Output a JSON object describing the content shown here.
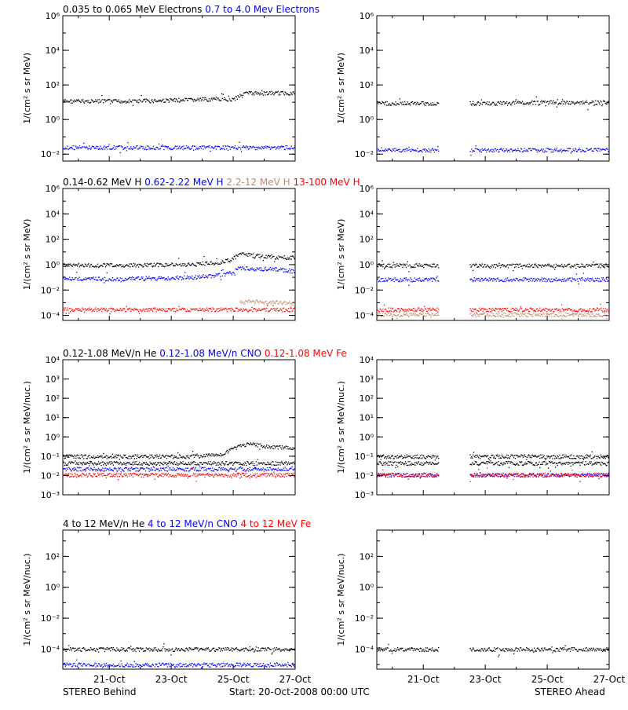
{
  "footer": {
    "left": "STEREO Behind",
    "center": "Start: 20-Oct-2008 00:00 UTC",
    "right": "STEREO Ahead"
  },
  "colors": {
    "black": "#000000",
    "blue": "#0000ff",
    "tan": "#c08870",
    "red": "#ff0000"
  },
  "x_ticks": [
    "21-Oct",
    "23-Oct",
    "25-Oct",
    "27-Oct"
  ],
  "chart_data": [
    {
      "type": "scatter",
      "legend": [
        {
          "text": "0.035 to 0.065 MeV Electrons",
          "color": "#000000"
        },
        {
          "text": "0.7 to 4.0 Mev Electrons",
          "color": "#0000ff"
        }
      ],
      "ylabel": "1/(cm² s sr MeV)",
      "ylim": [
        0.004,
        1000000
      ],
      "yticks": [
        {
          "v": 0.01,
          "label": "10⁻²"
        },
        {
          "v": 1,
          "label": "10⁰"
        },
        {
          "v": 100,
          "label": "10²"
        },
        {
          "v": 10000,
          "label": "10⁴"
        },
        {
          "v": 1000000,
          "label": "10⁶"
        }
      ],
      "panels": [
        {
          "spacecraft": "STEREO Behind",
          "series": [
            {
              "name": "0.035 to 0.065 MeV Electrons",
              "color": "#000000",
              "x": [
                0,
                1,
                2,
                3,
                4,
                5,
                5.5,
                5.8,
                6,
                7,
                7.5
              ],
              "y": [
                12,
                12,
                12,
                13,
                14,
                16,
                15,
                35,
                35,
                35,
                36
              ]
            },
            {
              "name": "0.7 to 4.0 Mev Electrons",
              "color": "#0000ff",
              "x": [
                0,
                1,
                2,
                3,
                4,
                5,
                6,
                7,
                7.5
              ],
              "y": [
                0.025,
                0.025,
                0.025,
                0.025,
                0.025,
                0.025,
                0.025,
                0.025,
                0.025
              ]
            }
          ]
        },
        {
          "spacecraft": "STEREO Ahead",
          "series": [
            {
              "name": "0.035 to 0.065 MeV Electrons",
              "color": "#000000",
              "x": [
                0,
                1,
                2
              ],
              "y": [
                9,
                9,
                9
              ]
            },
            {
              "name": "0.035 to 0.065 MeV Electrons",
              "color": "#000000",
              "x": [
                3,
                4,
                5,
                6,
                7,
                7.5
              ],
              "y": [
                9,
                9,
                10,
                10,
                10,
                10
              ]
            },
            {
              "name": "0.7 to 4.0 Mev Electrons",
              "color": "#0000ff",
              "x": [
                0,
                1,
                2
              ],
              "y": [
                0.018,
                0.018,
                0.018
              ]
            },
            {
              "name": "0.7 to 4.0 Mev Electrons",
              "color": "#0000ff",
              "x": [
                3,
                4,
                5,
                6,
                7,
                7.5
              ],
              "y": [
                0.018,
                0.018,
                0.018,
                0.018,
                0.018,
                0.018
              ]
            }
          ]
        }
      ]
    },
    {
      "type": "scatter",
      "legend": [
        {
          "text": "0.14-0.62 MeV H",
          "color": "#000000"
        },
        {
          "text": "0.62-2.22 MeV H",
          "color": "#0000ff"
        },
        {
          "text": "2.2-12 MeV H",
          "color": "#c08870"
        },
        {
          "text": "13-100 MeV H",
          "color": "#ff0000"
        }
      ],
      "ylabel": "1/(cm² s sr MeV)",
      "ylim": [
        4e-05,
        1000000
      ],
      "yticks": [
        {
          "v": 0.0001,
          "label": "10⁻⁴"
        },
        {
          "v": 0.01,
          "label": "10⁻²"
        },
        {
          "v": 1,
          "label": "10⁰"
        },
        {
          "v": 100,
          "label": "10²"
        },
        {
          "v": 10000,
          "label": "10⁴"
        },
        {
          "v": 1000000,
          "label": "10⁶"
        }
      ],
      "panels": [
        {
          "spacecraft": "STEREO Behind",
          "series": [
            {
              "name": "0.14-0.62 MeV H",
              "color": "#000000",
              "x": [
                0,
                1,
                2,
                3,
                4,
                5,
                5.4,
                5.7,
                6,
                6.5,
                7,
                7.5
              ],
              "y": [
                1,
                0.95,
                0.95,
                1,
                1.1,
                1.5,
                2.5,
                7,
                6,
                5,
                4,
                4
              ]
            },
            {
              "name": "0.62-2.22 MeV H",
              "color": "#0000ff",
              "x": [
                0,
                1,
                2,
                3,
                4,
                5,
                5.4,
                5.7,
                6,
                7,
                7.5
              ],
              "y": [
                0.08,
                0.08,
                0.08,
                0.09,
                0.1,
                0.15,
                0.2,
                0.6,
                0.5,
                0.45,
                0.3
              ]
            },
            {
              "name": "2.2-12 MeV H",
              "color": "#c08870",
              "x": [
                5.7,
                6,
                6.5,
                7,
                7.5
              ],
              "y": [
                0.0012,
                0.0013,
                0.0012,
                0.0011,
                0.001
              ]
            },
            {
              "name": "13-100 MeV H",
              "color": "#ff0000",
              "x": [
                0,
                1,
                2,
                3,
                4,
                5,
                6,
                7,
                7.5
              ],
              "y": [
                0.0003,
                0.0003,
                0.0003,
                0.0003,
                0.0003,
                0.0003,
                0.0003,
                0.0003,
                0.0003
              ]
            }
          ]
        },
        {
          "spacecraft": "STEREO Ahead",
          "series": [
            {
              "name": "0.14-0.62 MeV H",
              "color": "#000000",
              "x": [
                0,
                1,
                2
              ],
              "y": [
                0.9,
                0.9,
                0.9
              ]
            },
            {
              "name": "0.14-0.62 MeV H",
              "color": "#000000",
              "x": [
                3,
                4,
                5,
                6,
                7,
                7.5
              ],
              "y": [
                0.9,
                0.9,
                0.9,
                0.9,
                0.9,
                0.9
              ]
            },
            {
              "name": "0.62-2.22 MeV H",
              "color": "#0000ff",
              "x": [
                0,
                1,
                2
              ],
              "y": [
                0.07,
                0.07,
                0.07
              ]
            },
            {
              "name": "0.62-2.22 MeV H",
              "color": "#0000ff",
              "x": [
                3,
                4,
                5,
                6,
                7,
                7.5
              ],
              "y": [
                0.07,
                0.07,
                0.07,
                0.07,
                0.07,
                0.07
              ]
            },
            {
              "name": "2.2-12 MeV H",
              "color": "#c08870",
              "x": [
                0,
                1,
                2
              ],
              "y": [
                0.00012,
                0.00012,
                0.00012
              ]
            },
            {
              "name": "2.2-12 MeV H",
              "color": "#c08870",
              "x": [
                3,
                4,
                5,
                6,
                7,
                7.5
              ],
              "y": [
                0.00012,
                0.00012,
                0.00012,
                0.00012,
                0.00012,
                0.00012
              ]
            },
            {
              "name": "13-100 MeV H",
              "color": "#ff0000",
              "x": [
                0,
                1,
                2
              ],
              "y": [
                0.0003,
                0.0003,
                0.0003
              ]
            },
            {
              "name": "13-100 MeV H",
              "color": "#ff0000",
              "x": [
                3,
                4,
                5,
                6,
                7,
                7.5
              ],
              "y": [
                0.0003,
                0.0003,
                0.0003,
                0.0003,
                0.0003,
                0.0003
              ]
            }
          ]
        }
      ]
    },
    {
      "type": "scatter",
      "legend": [
        {
          "text": "0.12-1.08 MeV/n He",
          "color": "#000000"
        },
        {
          "text": "0.12-1.08 MeV/n CNO",
          "color": "#0000ff"
        },
        {
          "text": "0.12-1.08 MeV Fe",
          "color": "#ff0000"
        }
      ],
      "ylabel": "1/(cm² s sr MeV/nuc.)",
      "ylim": [
        0.001,
        10000
      ],
      "yticks": [
        {
          "v": 0.001,
          "label": "10⁻³"
        },
        {
          "v": 0.01,
          "label": "10⁻²"
        },
        {
          "v": 0.1,
          "label": "10⁻¹"
        },
        {
          "v": 1,
          "label": "10⁰"
        },
        {
          "v": 10,
          "label": "10¹"
        },
        {
          "v": 100,
          "label": "10²"
        },
        {
          "v": 1000,
          "label": "10³"
        },
        {
          "v": 10000,
          "label": "10⁴"
        }
      ],
      "panels": [
        {
          "spacecraft": "STEREO Behind",
          "series": [
            {
              "name": "0.12-1.08 MeV/n He",
              "color": "#000000",
              "x": [
                0,
                1,
                2,
                3,
                4,
                5,
                5.7,
                6,
                6.5,
                7,
                7.5
              ],
              "y": [
                0.1,
                0.1,
                0.1,
                0.1,
                0.1,
                0.12,
                0.35,
                0.45,
                0.35,
                0.3,
                0.25
              ]
            },
            {
              "name": "0.12-1.08 MeV/n He",
              "color": "#000000",
              "x": [
                0,
                1,
                2,
                3,
                4,
                5,
                6,
                7,
                7.5
              ],
              "y": [
                0.045,
                0.045,
                0.045,
                0.045,
                0.045,
                0.045,
                0.045,
                0.045,
                0.045
              ]
            },
            {
              "name": "0.12-1.08 MeV/n CNO",
              "color": "#0000ff",
              "x": [
                0,
                1,
                2,
                3,
                4,
                5,
                6,
                7,
                7.5
              ],
              "y": [
                0.022,
                0.022,
                0.022,
                0.022,
                0.022,
                0.022,
                0.022,
                0.022,
                0.022
              ]
            },
            {
              "name": "0.12-1.08 MeV Fe",
              "color": "#ff0000",
              "x": [
                0,
                1,
                2,
                3,
                4,
                5,
                6,
                7,
                7.5
              ],
              "y": [
                0.011,
                0.011,
                0.011,
                0.011,
                0.011,
                0.011,
                0.011,
                0.011,
                0.011
              ]
            }
          ]
        },
        {
          "spacecraft": "STEREO Ahead",
          "series": [
            {
              "name": "0.12-1.08 MeV/n He",
              "color": "#000000",
              "x": [
                0,
                1,
                2
              ],
              "y": [
                0.1,
                0.1,
                0.1
              ]
            },
            {
              "name": "0.12-1.08 MeV/n He",
              "color": "#000000",
              "x": [
                3,
                4,
                5,
                6,
                7,
                7.5
              ],
              "y": [
                0.1,
                0.1,
                0.1,
                0.1,
                0.1,
                0.1
              ]
            },
            {
              "name": "0.12-1.08 MeV/n He",
              "color": "#000000",
              "x": [
                0,
                1,
                2
              ],
              "y": [
                0.045,
                0.045,
                0.045
              ]
            },
            {
              "name": "0.12-1.08 MeV/n He",
              "color": "#000000",
              "x": [
                3,
                4,
                5,
                6,
                7,
                7.5
              ],
              "y": [
                0.045,
                0.045,
                0.045,
                0.045,
                0.045,
                0.045
              ]
            },
            {
              "name": "0.12-1.08 MeV/n CNO",
              "color": "#0000ff",
              "x": [
                0,
                1,
                2
              ],
              "y": [
                0.011,
                0.011,
                0.011
              ]
            },
            {
              "name": "0.12-1.08 MeV/n CNO",
              "color": "#0000ff",
              "x": [
                3,
                4,
                5,
                6,
                7,
                7.5
              ],
              "y": [
                0.011,
                0.011,
                0.011,
                0.011,
                0.011,
                0.011
              ]
            },
            {
              "name": "0.12-1.08 MeV Fe",
              "color": "#ff0000",
              "x": [
                0,
                1,
                2
              ],
              "y": [
                0.011,
                0.011,
                0.011
              ]
            },
            {
              "name": "0.12-1.08 MeV Fe",
              "color": "#ff0000",
              "x": [
                3,
                4,
                5,
                6,
                7,
                7.5
              ],
              "y": [
                0.011,
                0.011,
                0.011,
                0.011,
                0.011,
                0.011
              ]
            }
          ]
        }
      ]
    },
    {
      "type": "scatter",
      "legend": [
        {
          "text": "4 to 12 MeV/n He",
          "color": "#000000"
        },
        {
          "text": "4 to 12 MeV/n CNO",
          "color": "#0000ff"
        },
        {
          "text": "4 to 12 MeV Fe",
          "color": "#ff0000"
        }
      ],
      "ylabel": "1/(cm² s sr MeV/nuc.)",
      "ylim": [
        5e-06,
        5000
      ],
      "yticks": [
        {
          "v": 0.0001,
          "label": "10⁻⁴"
        },
        {
          "v": 0.01,
          "label": "10⁻²"
        },
        {
          "v": 1,
          "label": "10⁰"
        },
        {
          "v": 100,
          "label": "10²"
        }
      ],
      "panels": [
        {
          "spacecraft": "STEREO Behind",
          "series": [
            {
              "name": "4 to 12 MeV/n He",
              "color": "#000000",
              "x": [
                0,
                1,
                2,
                3,
                4,
                5,
                6,
                7,
                7.5
              ],
              "y": [
                0.0001,
                0.0001,
                0.0001,
                0.0001,
                0.0001,
                0.0001,
                0.0001,
                0.0001,
                0.0001
              ]
            },
            {
              "name": "4 to 12 MeV/n CNO",
              "color": "#0000ff",
              "x": [
                0,
                1,
                2,
                3,
                4,
                5,
                6,
                7,
                7.5
              ],
              "y": [
                1e-05,
                1e-05,
                1e-05,
                1e-05,
                1e-05,
                1e-05,
                1e-05,
                1e-05,
                1e-05
              ]
            }
          ]
        },
        {
          "spacecraft": "STEREO Ahead",
          "series": [
            {
              "name": "4 to 12 MeV/n He",
              "color": "#000000",
              "x": [
                0,
                1,
                2
              ],
              "y": [
                0.0001,
                0.0001,
                0.0001
              ]
            },
            {
              "name": "4 to 12 MeV/n He",
              "color": "#000000",
              "x": [
                3,
                4,
                5,
                6,
                7,
                7.5
              ],
              "y": [
                0.0001,
                0.0001,
                0.0001,
                0.0001,
                0.0001,
                0.0001
              ]
            }
          ]
        }
      ]
    }
  ]
}
